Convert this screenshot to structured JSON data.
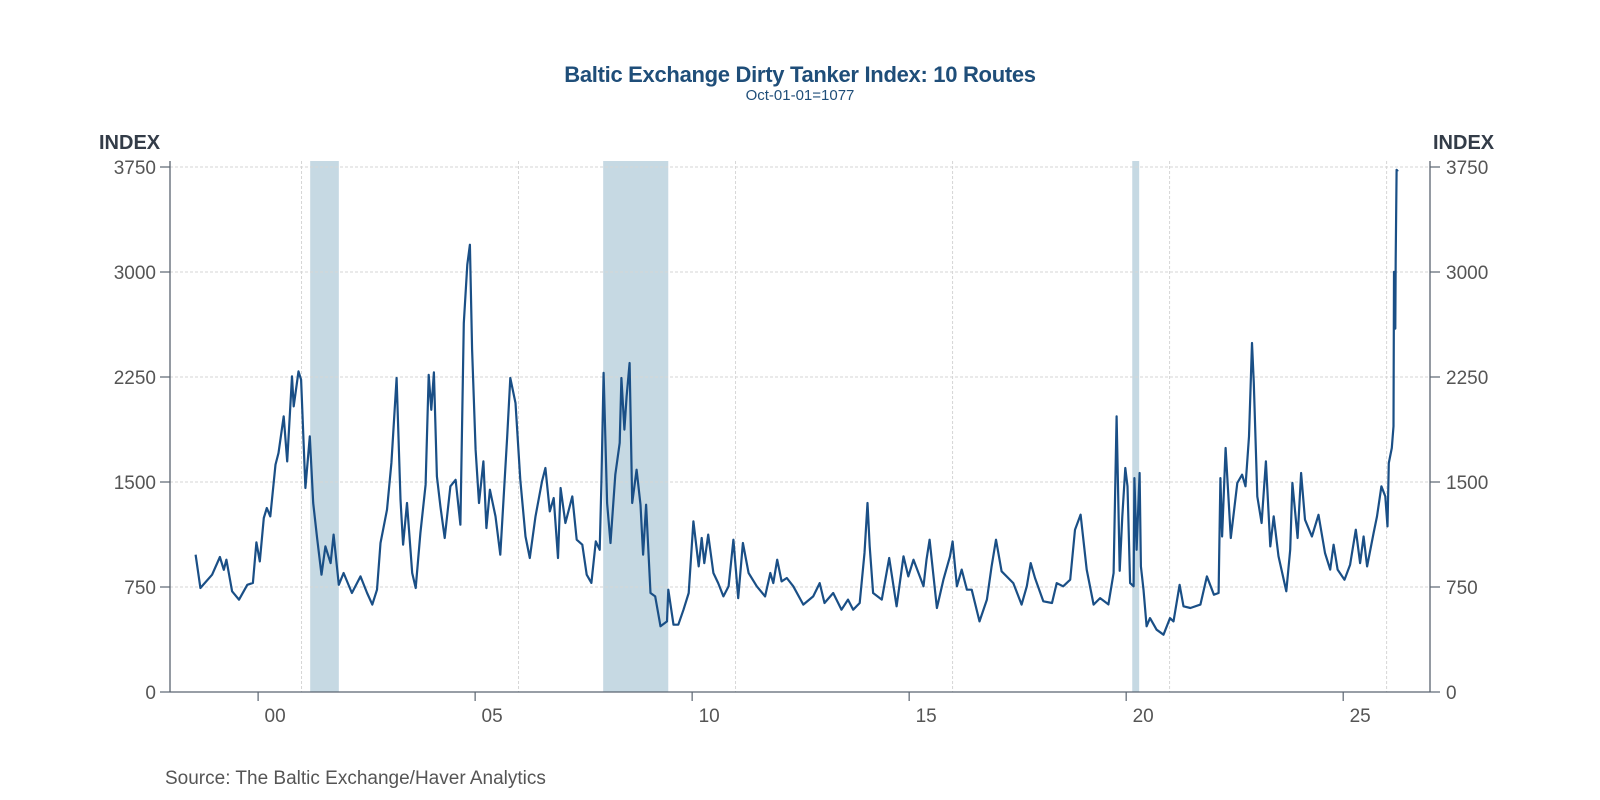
{
  "chart_data": {
    "type": "line",
    "title": "Baltic Exchange Dirty Tanker Index: 10 Routes",
    "subtitle": "Oct-01-01=1077",
    "ylabel_left": "INDEX",
    "ylabel_right": "INDEX",
    "source": "Source:  The Baltic Exchange/Haver Analytics",
    "ylim": [
      0,
      3750
    ],
    "yticks": [
      0,
      750,
      1500,
      2250,
      3000,
      3750
    ],
    "xlim": [
      1997.97,
      2027.0
    ],
    "xticks": [
      {
        "value": 2000,
        "label": "00"
      },
      {
        "value": 2005,
        "label": "05"
      },
      {
        "value": 2010,
        "label": "10"
      },
      {
        "value": 2015,
        "label": "15"
      },
      {
        "value": 2020,
        "label": "20"
      },
      {
        "value": 2025,
        "label": "25"
      }
    ],
    "xgrid": [
      2001,
      2006,
      2011,
      2016,
      2021,
      2026
    ],
    "grid": true,
    "colors": {
      "line": "#1a4f86",
      "recession": "#c6d9e3",
      "title": "#1f4e79"
    },
    "recessions": [
      [
        2001.2,
        2001.86
      ],
      [
        2007.95,
        2009.45
      ],
      [
        2020.14,
        2020.3
      ]
    ],
    "series": [
      {
        "points": [
          [
            1998.56,
            981
          ],
          [
            1998.67,
            743
          ],
          [
            1998.94,
            838
          ],
          [
            1999.12,
            964
          ],
          [
            1999.21,
            873
          ],
          [
            1999.27,
            945
          ],
          [
            1999.4,
            719
          ],
          [
            1999.56,
            659
          ],
          [
            1999.75,
            766
          ],
          [
            1999.88,
            779
          ],
          [
            1999.96,
            1069
          ],
          [
            2000.04,
            933
          ],
          [
            2000.13,
            1243
          ],
          [
            2000.2,
            1314
          ],
          [
            2000.28,
            1254
          ],
          [
            2000.4,
            1624
          ],
          [
            2000.47,
            1707
          ],
          [
            2000.59,
            1969
          ],
          [
            2000.67,
            1647
          ],
          [
            2000.78,
            2254
          ],
          [
            2000.82,
            2040
          ],
          [
            2000.93,
            2290
          ],
          [
            2000.99,
            2231
          ],
          [
            2001.09,
            1457
          ],
          [
            2001.19,
            1826
          ],
          [
            2001.27,
            1350
          ],
          [
            2001.36,
            1100
          ],
          [
            2001.46,
            838
          ],
          [
            2001.55,
            1040
          ],
          [
            2001.67,
            921
          ],
          [
            2001.74,
            1124
          ],
          [
            2001.86,
            766
          ],
          [
            2001.97,
            850
          ],
          [
            2002.16,
            707
          ],
          [
            2002.36,
            826
          ],
          [
            2002.51,
            707
          ],
          [
            2002.63,
            624
          ],
          [
            2002.74,
            731
          ],
          [
            2002.82,
            1064
          ],
          [
            2002.97,
            1302
          ],
          [
            2003.07,
            1636
          ],
          [
            2003.19,
            2243
          ],
          [
            2003.28,
            1374
          ],
          [
            2003.34,
            1052
          ],
          [
            2003.43,
            1350
          ],
          [
            2003.55,
            850
          ],
          [
            2003.63,
            743
          ],
          [
            2003.74,
            1136
          ],
          [
            2003.86,
            1481
          ],
          [
            2003.93,
            2266
          ],
          [
            2003.99,
            2016
          ],
          [
            2004.05,
            2283
          ],
          [
            2004.12,
            1540
          ],
          [
            2004.2,
            1326
          ],
          [
            2004.3,
            1100
          ],
          [
            2004.43,
            1469
          ],
          [
            2004.55,
            1516
          ],
          [
            2004.66,
            1195
          ],
          [
            2004.74,
            2636
          ],
          [
            2004.82,
            3052
          ],
          [
            2004.88,
            3195
          ],
          [
            2004.93,
            2445
          ],
          [
            2005.01,
            1731
          ],
          [
            2005.09,
            1350
          ],
          [
            2005.19,
            1647
          ],
          [
            2005.26,
            1171
          ],
          [
            2005.34,
            1445
          ],
          [
            2005.47,
            1254
          ],
          [
            2005.58,
            981
          ],
          [
            2005.74,
            1826
          ],
          [
            2005.81,
            2243
          ],
          [
            2005.93,
            2064
          ],
          [
            2006.04,
            1516
          ],
          [
            2006.16,
            1111
          ],
          [
            2006.26,
            957
          ],
          [
            2006.39,
            1254
          ],
          [
            2006.54,
            1504
          ],
          [
            2006.62,
            1600
          ],
          [
            2006.72,
            1290
          ],
          [
            2006.81,
            1386
          ],
          [
            2006.91,
            957
          ],
          [
            2006.97,
            1457
          ],
          [
            2007.08,
            1207
          ],
          [
            2007.24,
            1397
          ],
          [
            2007.34,
            1088
          ],
          [
            2007.47,
            1052
          ],
          [
            2007.57,
            838
          ],
          [
            2007.68,
            779
          ],
          [
            2007.78,
            1076
          ],
          [
            2007.87,
            1016
          ],
          [
            2007.91,
            1493
          ],
          [
            2007.96,
            2279
          ],
          [
            2008.04,
            1350
          ],
          [
            2008.12,
            1064
          ],
          [
            2008.23,
            1552
          ],
          [
            2008.33,
            1779
          ],
          [
            2008.37,
            2243
          ],
          [
            2008.44,
            1874
          ],
          [
            2008.49,
            2111
          ],
          [
            2008.56,
            2350
          ],
          [
            2008.62,
            1350
          ],
          [
            2008.72,
            1588
          ],
          [
            2008.81,
            1338
          ],
          [
            2008.87,
            981
          ],
          [
            2008.94,
            1338
          ],
          [
            2009.04,
            707
          ],
          [
            2009.15,
            683
          ],
          [
            2009.27,
            469
          ],
          [
            2009.42,
            504
          ],
          [
            2009.45,
            731
          ],
          [
            2009.57,
            481
          ],
          [
            2009.68,
            481
          ],
          [
            2009.8,
            588
          ],
          [
            2009.92,
            707
          ],
          [
            2010.03,
            1219
          ],
          [
            2010.15,
            897
          ],
          [
            2010.22,
            1100
          ],
          [
            2010.28,
            921
          ],
          [
            2010.37,
            1124
          ],
          [
            2010.49,
            850
          ],
          [
            2010.6,
            778
          ],
          [
            2010.72,
            683
          ],
          [
            2010.84,
            755
          ],
          [
            2010.95,
            1088
          ],
          [
            2011.06,
            671
          ],
          [
            2011.17,
            1064
          ],
          [
            2011.3,
            850
          ],
          [
            2011.49,
            755
          ],
          [
            2011.68,
            683
          ],
          [
            2011.8,
            850
          ],
          [
            2011.87,
            778
          ],
          [
            2011.96,
            945
          ],
          [
            2012.06,
            790
          ],
          [
            2012.18,
            814
          ],
          [
            2012.33,
            755
          ],
          [
            2012.56,
            624
          ],
          [
            2012.79,
            683
          ],
          [
            2012.94,
            778
          ],
          [
            2013.05,
            636
          ],
          [
            2013.25,
            707
          ],
          [
            2013.44,
            588
          ],
          [
            2013.59,
            660
          ],
          [
            2013.71,
            588
          ],
          [
            2013.86,
            636
          ],
          [
            2013.97,
            993
          ],
          [
            2014.04,
            1350
          ],
          [
            2014.09,
            1040
          ],
          [
            2014.17,
            707
          ],
          [
            2014.37,
            660
          ],
          [
            2014.54,
            957
          ],
          [
            2014.71,
            612
          ],
          [
            2014.87,
            969
          ],
          [
            2014.98,
            826
          ],
          [
            2015.1,
            945
          ],
          [
            2015.33,
            755
          ],
          [
            2015.4,
            945
          ],
          [
            2015.47,
            1088
          ],
          [
            2015.64,
            600
          ],
          [
            2015.79,
            802
          ],
          [
            2015.94,
            969
          ],
          [
            2016.0,
            1076
          ],
          [
            2016.1,
            755
          ],
          [
            2016.21,
            874
          ],
          [
            2016.33,
            731
          ],
          [
            2016.44,
            731
          ],
          [
            2016.62,
            504
          ],
          [
            2016.79,
            660
          ],
          [
            2016.9,
            897
          ],
          [
            2017.0,
            1088
          ],
          [
            2017.13,
            862
          ],
          [
            2017.4,
            778
          ],
          [
            2017.59,
            624
          ],
          [
            2017.71,
            755
          ],
          [
            2017.8,
            921
          ],
          [
            2017.9,
            814
          ],
          [
            2018.09,
            648
          ],
          [
            2018.29,
            636
          ],
          [
            2018.4,
            778
          ],
          [
            2018.55,
            755
          ],
          [
            2018.71,
            802
          ],
          [
            2018.82,
            1159
          ],
          [
            2018.95,
            1267
          ],
          [
            2019.09,
            874
          ],
          [
            2019.25,
            624
          ],
          [
            2019.4,
            671
          ],
          [
            2019.59,
            626
          ],
          [
            2019.71,
            850
          ],
          [
            2019.78,
            1969
          ],
          [
            2019.85,
            866
          ],
          [
            2019.91,
            1254
          ],
          [
            2019.98,
            1600
          ],
          [
            2020.03,
            1469
          ],
          [
            2020.09,
            778
          ],
          [
            2020.17,
            755
          ],
          [
            2020.19,
            1528
          ],
          [
            2020.24,
            1016
          ],
          [
            2020.31,
            1564
          ],
          [
            2020.34,
            897
          ],
          [
            2020.4,
            731
          ],
          [
            2020.47,
            469
          ],
          [
            2020.55,
            528
          ],
          [
            2020.7,
            445
          ],
          [
            2020.86,
            409
          ],
          [
            2021.01,
            528
          ],
          [
            2021.09,
            504
          ],
          [
            2021.23,
            766
          ],
          [
            2021.32,
            612
          ],
          [
            2021.48,
            600
          ],
          [
            2021.71,
            624
          ],
          [
            2021.86,
            826
          ],
          [
            2022.02,
            695
          ],
          [
            2022.13,
            707
          ],
          [
            2022.17,
            1528
          ],
          [
            2022.21,
            1111
          ],
          [
            2022.29,
            1743
          ],
          [
            2022.41,
            1100
          ],
          [
            2022.56,
            1493
          ],
          [
            2022.67,
            1552
          ],
          [
            2022.75,
            1469
          ],
          [
            2022.83,
            1826
          ],
          [
            2022.9,
            2493
          ],
          [
            2022.94,
            2207
          ],
          [
            2023.02,
            1397
          ],
          [
            2023.12,
            1207
          ],
          [
            2023.22,
            1648
          ],
          [
            2023.32,
            1040
          ],
          [
            2023.4,
            1254
          ],
          [
            2023.51,
            969
          ],
          [
            2023.69,
            719
          ],
          [
            2023.78,
            1016
          ],
          [
            2023.83,
            1493
          ],
          [
            2023.95,
            1100
          ],
          [
            2024.03,
            1564
          ],
          [
            2024.12,
            1231
          ],
          [
            2024.28,
            1111
          ],
          [
            2024.43,
            1266
          ],
          [
            2024.58,
            993
          ],
          [
            2024.7,
            874
          ],
          [
            2024.78,
            1052
          ],
          [
            2024.87,
            874
          ],
          [
            2025.03,
            802
          ],
          [
            2025.16,
            909
          ],
          [
            2025.29,
            1159
          ],
          [
            2025.39,
            921
          ],
          [
            2025.47,
            1111
          ],
          [
            2025.55,
            897
          ],
          [
            2025.7,
            1136
          ],
          [
            2025.78,
            1254
          ],
          [
            2025.88,
            1469
          ],
          [
            2025.97,
            1397
          ],
          [
            2026.02,
            1183
          ],
          [
            2026.05,
            1636
          ],
          [
            2026.12,
            1743
          ],
          [
            2026.16,
            1898
          ],
          [
            2026.17,
            3001
          ],
          [
            2026.2,
            2596
          ],
          [
            2026.21,
            3096
          ],
          [
            2026.23,
            3730
          ],
          [
            2026.26,
            3718
          ]
        ]
      }
    ]
  }
}
